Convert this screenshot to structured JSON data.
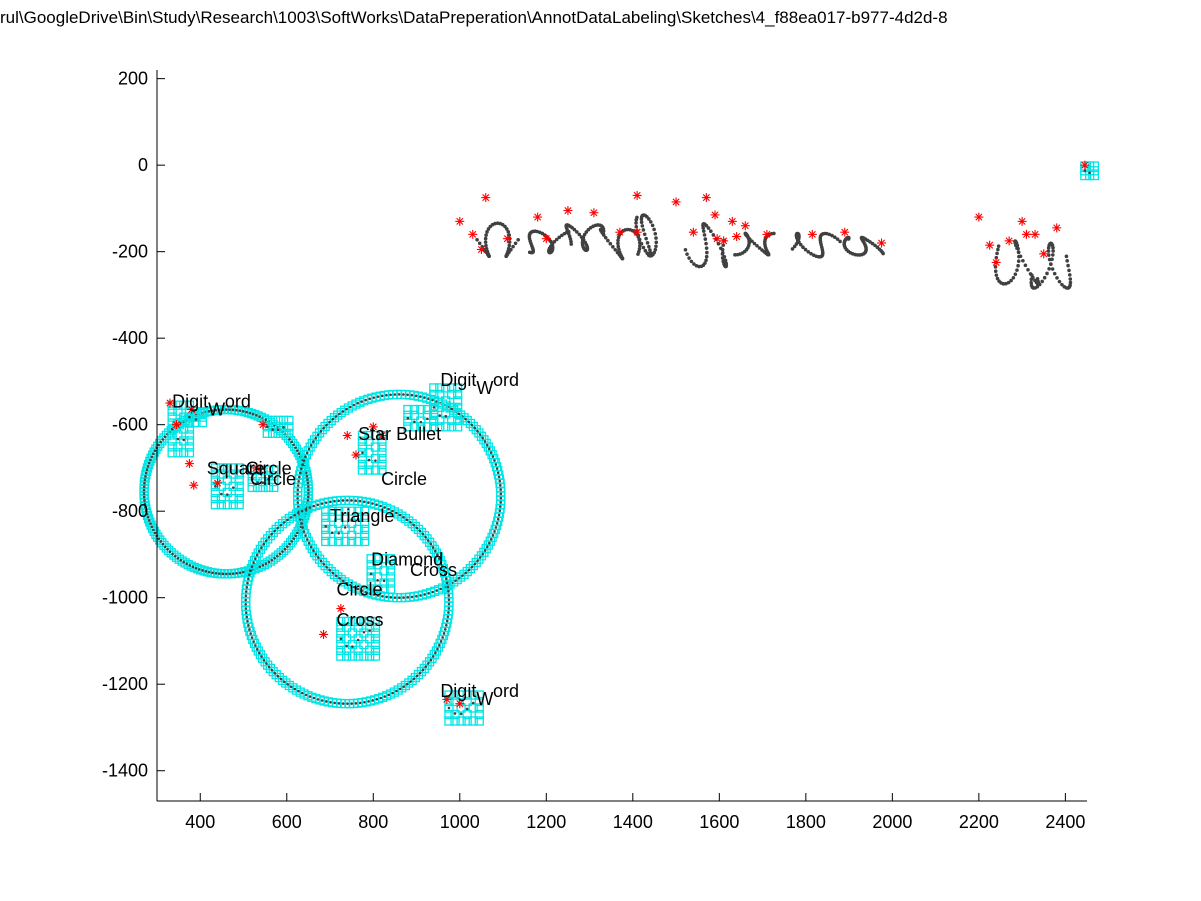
{
  "figure": {
    "title": "rul\\GoogleDrive\\Bin\\Study\\Research\\1003\\SoftWorks\\DataPreperation\\AnnotDataLabeling\\Sketches\\4_f88ea017-b977-4d2d-8"
  },
  "chart_data": {
    "type": "scatter",
    "title": "rul\\GoogleDrive\\Bin\\Study\\Research\\1003\\SoftWorks\\DataPreperation\\AnnotDataLabeling\\Sketches\\4_f88ea017-b977-4d2d-8",
    "xlabel": "",
    "ylabel": "",
    "xlim": [
      300,
      2450
    ],
    "ylim": [
      -1470,
      220
    ],
    "grid": false,
    "x_ticks": [
      400,
      600,
      800,
      1000,
      1200,
      1400,
      1600,
      1800,
      2000,
      2200,
      2400
    ],
    "y_ticks": [
      200,
      0,
      -200,
      -400,
      -600,
      -800,
      -1000,
      -1200,
      -1400
    ],
    "colors": {
      "stroke_points": "#404040",
      "corner_markers": "#ff0000",
      "shape_highlight": "#00e5e5",
      "text": "#000000"
    },
    "circles": [
      {
        "cx": 460,
        "cy": -755,
        "r": 190
      },
      {
        "cx": 860,
        "cy": -765,
        "r": 235
      },
      {
        "cx": 740,
        "cy": -1010,
        "r": 235
      }
    ],
    "blobs": [
      {
        "x": 335,
        "y": -555,
        "w": 40,
        "h": 110
      },
      {
        "x": 375,
        "y": -570,
        "w": 30,
        "h": 25
      },
      {
        "x": 435,
        "y": -700,
        "w": 55,
        "h": 85
      },
      {
        "x": 520,
        "y": -705,
        "w": 50,
        "h": 40
      },
      {
        "x": 555,
        "y": -590,
        "w": 50,
        "h": 30
      },
      {
        "x": 775,
        "y": -625,
        "w": 45,
        "h": 80
      },
      {
        "x": 690,
        "y": -800,
        "w": 90,
        "h": 70
      },
      {
        "x": 795,
        "y": -910,
        "w": 45,
        "h": 70
      },
      {
        "x": 725,
        "y": -1055,
        "w": 80,
        "h": 80
      },
      {
        "x": 940,
        "y": -515,
        "w": 55,
        "h": 90
      },
      {
        "x": 880,
        "y": -565,
        "w": 60,
        "h": 40
      },
      {
        "x": 975,
        "y": -1225,
        "w": 70,
        "h": 60
      },
      {
        "x": 2445,
        "y": -2,
        "w": 22,
        "h": 22
      }
    ],
    "handwriting": [
      {
        "x": 1040,
        "y": -130,
        "w": 95,
        "h": 85
      },
      {
        "x": 1150,
        "y": -150,
        "w": 90,
        "h": 55
      },
      {
        "x": 1245,
        "y": -135,
        "w": 75,
        "h": 65
      },
      {
        "x": 1330,
        "y": -145,
        "w": 80,
        "h": 75
      },
      {
        "x": 1420,
        "y": -110,
        "w": 25,
        "h": 105
      },
      {
        "x": 1535,
        "y": -130,
        "w": 90,
        "h": 110
      },
      {
        "x": 1640,
        "y": -155,
        "w": 90,
        "h": 55
      },
      {
        "x": 1760,
        "y": -155,
        "w": 110,
        "h": 60
      },
      {
        "x": 1885,
        "y": -165,
        "w": 80,
        "h": 45
      },
      {
        "x": 2240,
        "y": -170,
        "w": 90,
        "h": 110
      },
      {
        "x": 2330,
        "y": -175,
        "w": 80,
        "h": 115
      }
    ],
    "corner_markers": [
      [
        1000,
        -130
      ],
      [
        1030,
        -160
      ],
      [
        1050,
        -195
      ],
      [
        1060,
        -75
      ],
      [
        1110,
        -170
      ],
      [
        1180,
        -120
      ],
      [
        1200,
        -170
      ],
      [
        1250,
        -105
      ],
      [
        1310,
        -110
      ],
      [
        1370,
        -155
      ],
      [
        1410,
        -70
      ],
      [
        1410,
        -155
      ],
      [
        1500,
        -85
      ],
      [
        1540,
        -155
      ],
      [
        1570,
        -75
      ],
      [
        1590,
        -115
      ],
      [
        1595,
        -170
      ],
      [
        1610,
        -175
      ],
      [
        1630,
        -130
      ],
      [
        1640,
        -165
      ],
      [
        1660,
        -140
      ],
      [
        1710,
        -160
      ],
      [
        1815,
        -160
      ],
      [
        1890,
        -155
      ],
      [
        1975,
        -180
      ],
      [
        2200,
        -120
      ],
      [
        2225,
        -185
      ],
      [
        2240,
        -225
      ],
      [
        2270,
        -175
      ],
      [
        2300,
        -130
      ],
      [
        2310,
        -160
      ],
      [
        2330,
        -160
      ],
      [
        2350,
        -205
      ],
      [
        2380,
        -145
      ],
      [
        2445,
        0
      ],
      [
        330,
        -550
      ],
      [
        345,
        -600
      ],
      [
        380,
        -565
      ],
      [
        385,
        -740
      ],
      [
        375,
        -690
      ],
      [
        440,
        -735
      ],
      [
        530,
        -700
      ],
      [
        545,
        -600
      ],
      [
        740,
        -625
      ],
      [
        760,
        -670
      ],
      [
        800,
        -605
      ],
      [
        820,
        -625
      ],
      [
        685,
        -1085
      ],
      [
        725,
        -1025
      ],
      [
        970,
        -1235
      ],
      [
        1000,
        -1245
      ]
    ],
    "labels": [
      {
        "text": "Digit",
        "sub": "W",
        "tail": "ord",
        "x": 335,
        "y": -560
      },
      {
        "text": "Digit",
        "sub": "W",
        "tail": "ord",
        "x": 955,
        "y": -510
      },
      {
        "text": "Digit",
        "sub": "W",
        "tail": "ord",
        "x": 955,
        "y": -1230
      },
      {
        "text": "Star Bullet",
        "x": 765,
        "y": -635
      },
      {
        "text": "Square",
        "x": 415,
        "y": -715
      },
      {
        "text": "Circle",
        "x": 505,
        "y": -715
      },
      {
        "text": "Circle",
        "x": 515,
        "y": -740
      },
      {
        "text": "Circle",
        "x": 818,
        "y": -740
      },
      {
        "text": "Triangle",
        "x": 700,
        "y": -825
      },
      {
        "text": "Diamond",
        "x": 795,
        "y": -925
      },
      {
        "text": "Cross",
        "x": 885,
        "y": -950
      },
      {
        "text": "Circle",
        "x": 715,
        "y": -995
      },
      {
        "text": "Cross",
        "x": 715,
        "y": -1065
      }
    ]
  }
}
